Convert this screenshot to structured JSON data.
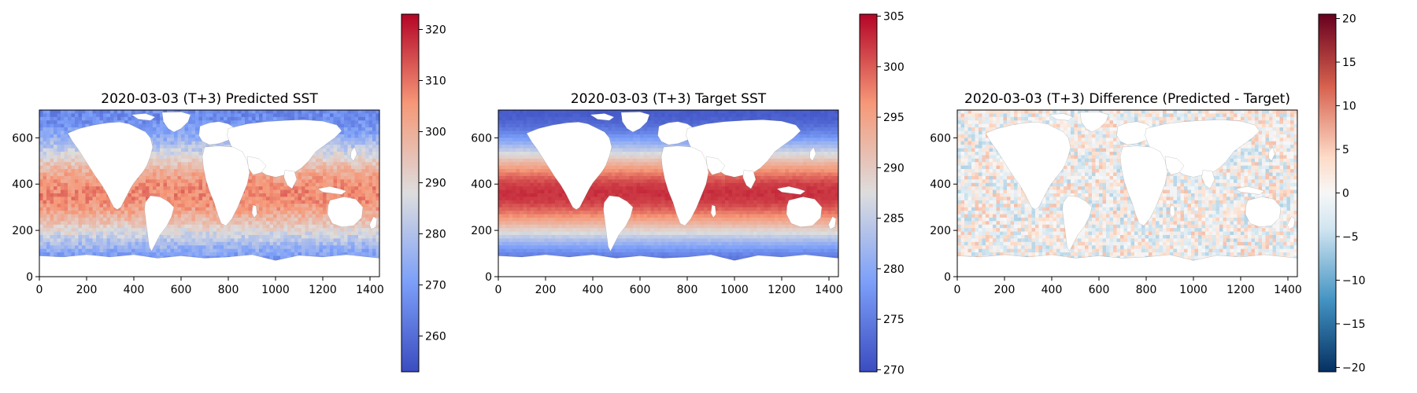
{
  "chart_data": [
    {
      "type": "heatmap",
      "title": "2020-03-03 (T+3)  Predicted SST",
      "x_ticks": [
        0,
        200,
        400,
        600,
        800,
        1000,
        1200,
        1400
      ],
      "y_ticks": [
        0,
        200,
        400,
        600
      ],
      "xlim": [
        0,
        1440
      ],
      "ylim": [
        0,
        720
      ],
      "colormap": "coolwarm",
      "colorbar": {
        "range": [
          253,
          323
        ],
        "ticks": [
          260,
          270,
          280,
          290,
          300,
          310,
          320
        ]
      },
      "field": {
        "tropical_peak": 307,
        "polar_low": 266,
        "noise": 5
      }
    },
    {
      "type": "heatmap",
      "title": "2020-03-03 (T+3)  Target SST",
      "x_ticks": [
        0,
        200,
        400,
        600,
        800,
        1000,
        1200,
        1400
      ],
      "y_ticks": [
        0,
        200,
        400,
        600
      ],
      "xlim": [
        0,
        1440
      ],
      "ylim": [
        0,
        720
      ],
      "colormap": "coolwarm",
      "colorbar": {
        "range": [
          269.8,
          305.2
        ],
        "ticks": [
          270,
          275,
          280,
          285,
          290,
          295,
          300,
          305
        ]
      },
      "field": {
        "tropical_peak": 302.5,
        "polar_low": 271.5,
        "noise": 0.6
      }
    },
    {
      "type": "heatmap",
      "title": "2020-03-03 (T+3)  Difference (Predicted - Target)",
      "x_ticks": [
        0,
        200,
        400,
        600,
        800,
        1000,
        1200,
        1400
      ],
      "y_ticks": [
        0,
        200,
        400,
        600
      ],
      "xlim": [
        0,
        1440
      ],
      "ylim": [
        0,
        720
      ],
      "colormap": "RdBu_r",
      "colorbar": {
        "range": [
          -20.5,
          20.5
        ],
        "ticks": [
          -20,
          -15,
          -10,
          -5,
          0,
          5,
          10,
          15,
          20
        ]
      },
      "field": {
        "mean": 0,
        "noise": 6
      }
    }
  ]
}
